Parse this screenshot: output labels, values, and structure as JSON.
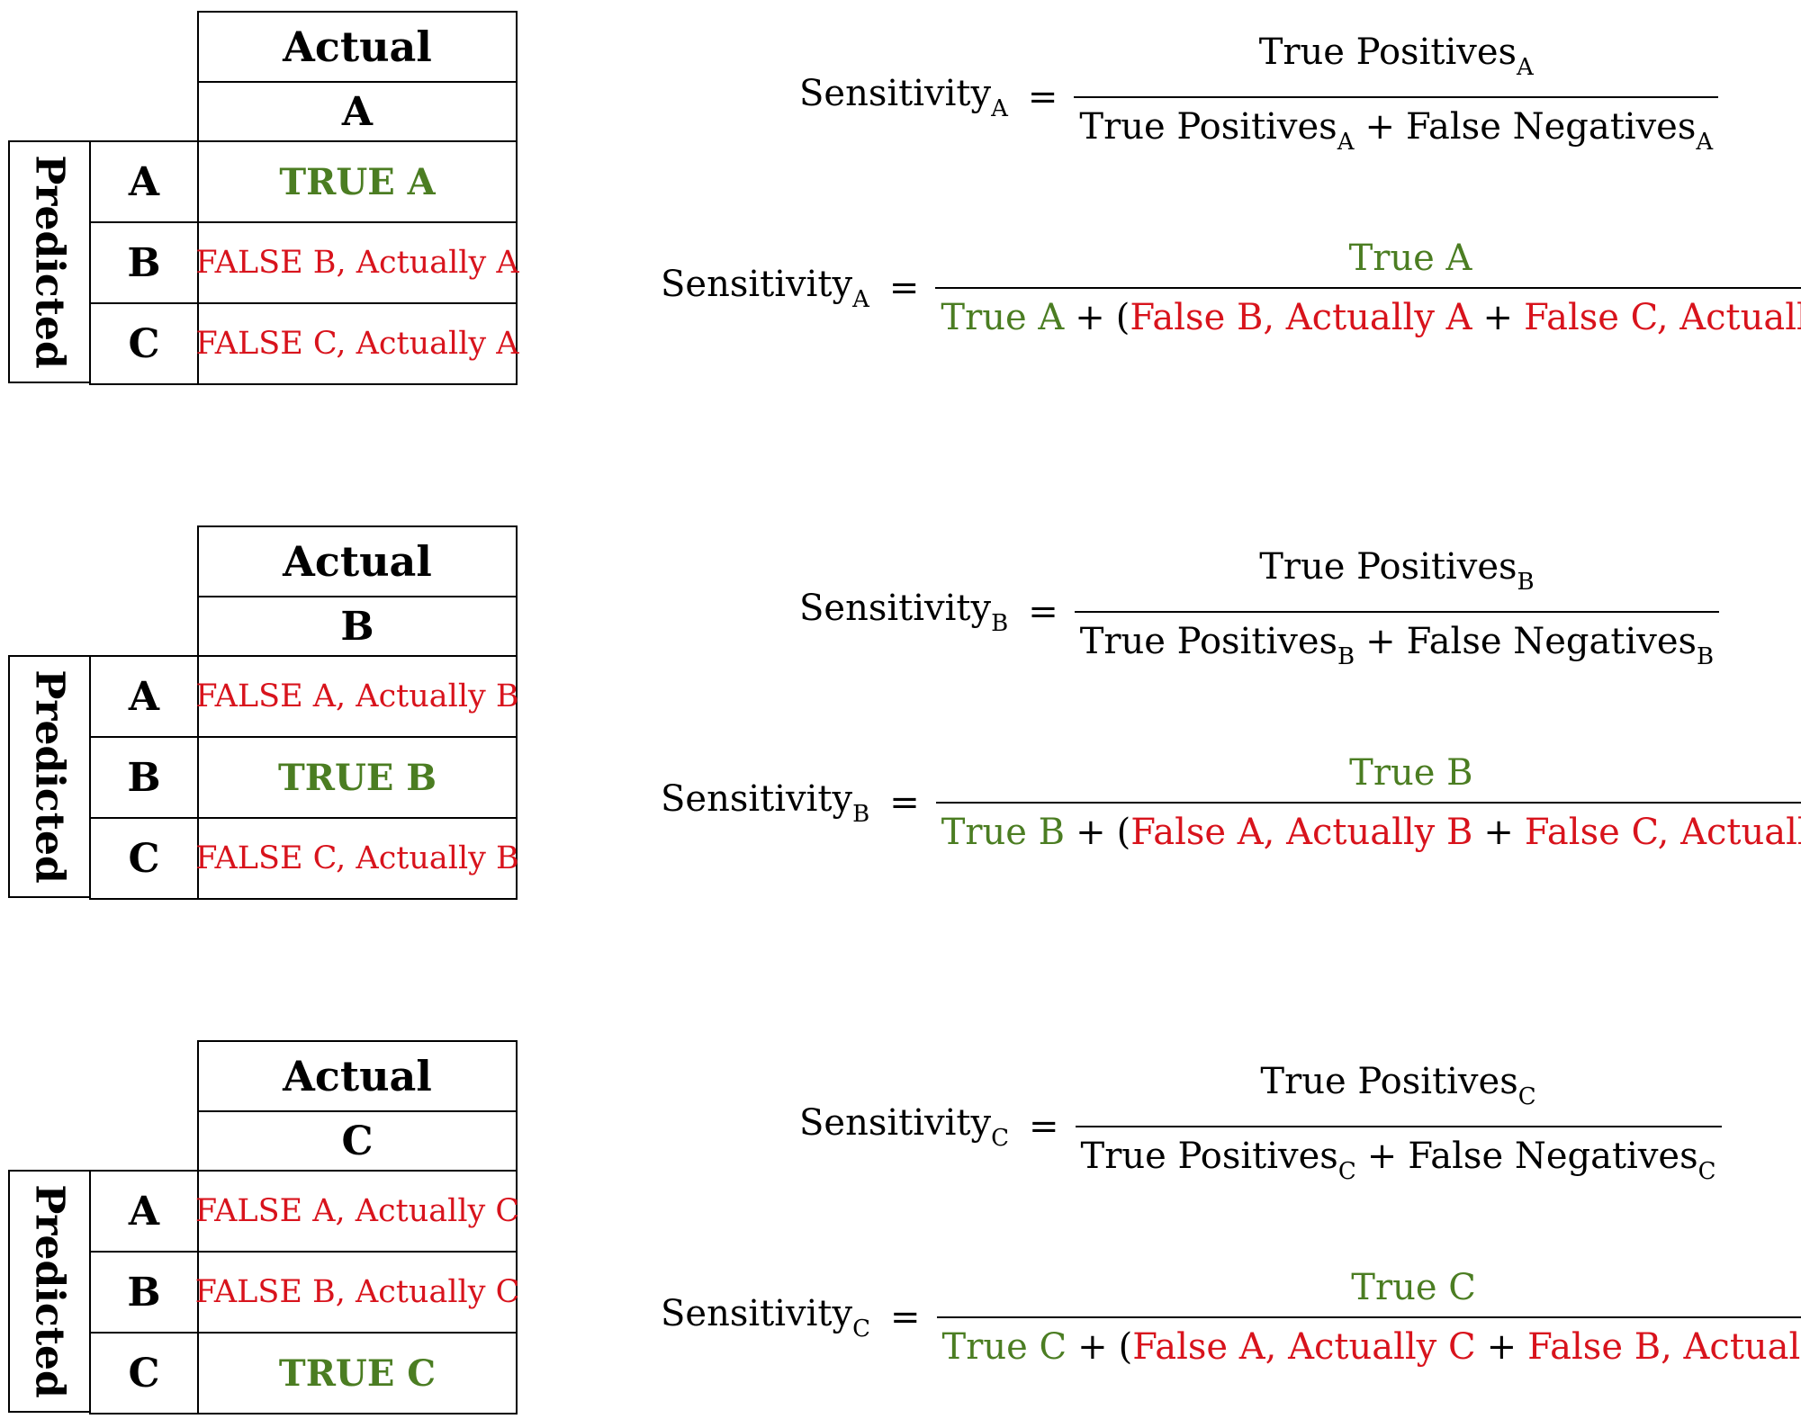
{
  "blocks": [
    {
      "table": {
        "actual_header": "Actual",
        "actual_class": "A",
        "predicted_label": "Predicted",
        "rows": [
          {
            "label": "A",
            "cell": "TRUE A"
          },
          {
            "label": "B",
            "cell": "FALSE B, Actually A"
          },
          {
            "label": "C",
            "cell": "FALSE C, Actually A"
          }
        ]
      },
      "formula1": {
        "lhs": "Sensitivity",
        "lhs_sub": "A",
        "eq": "=",
        "num": "True Positives",
        "num_sub": "A",
        "den_a": "True Positives",
        "den_a_sub": "A",
        "plus": "+",
        "den_b": "False Negatives",
        "den_b_sub": "A"
      },
      "formula2": {
        "lhs": "Sensitivity",
        "lhs_sub": "A",
        "eq": "=",
        "num": "True A",
        "den_true": "True A",
        "plus": "+",
        "open": "(",
        "den_f1": "False B, Actually A",
        "plus2": "+",
        "den_f2": "False C, Actually A",
        "close": ")"
      }
    },
    {
      "table": {
        "actual_header": "Actual",
        "actual_class": "B",
        "predicted_label": "Predicted",
        "rows": [
          {
            "label": "A",
            "cell": "FALSE A, Actually B"
          },
          {
            "label": "B",
            "cell": "TRUE B"
          },
          {
            "label": "C",
            "cell": "FALSE C, Actually B"
          }
        ]
      },
      "formula1": {
        "lhs": "Sensitivity",
        "lhs_sub": "B",
        "eq": "=",
        "num": "True Positives",
        "num_sub": "B",
        "den_a": "True Positives",
        "den_a_sub": "B",
        "plus": "+",
        "den_b": "False Negatives",
        "den_b_sub": "B"
      },
      "formula2": {
        "lhs": "Sensitivity",
        "lhs_sub": "B",
        "eq": "=",
        "num": "True B",
        "den_true": "True B",
        "plus": "+",
        "open": "(",
        "den_f1": "False A, Actually B",
        "plus2": "+",
        "den_f2": "False C, Actually B",
        "close": ")"
      }
    },
    {
      "table": {
        "actual_header": "Actual",
        "actual_class": "C",
        "predicted_label": "Predicted",
        "rows": [
          {
            "label": "A",
            "cell": "FALSE A, Actually C"
          },
          {
            "label": "B",
            "cell": "FALSE B, Actually C"
          },
          {
            "label": "C",
            "cell": "TRUE C"
          }
        ]
      },
      "formula1": {
        "lhs": "Sensitivity",
        "lhs_sub": "C",
        "eq": "=",
        "num": "True Positives",
        "num_sub": "C",
        "den_a": "True Positives",
        "den_a_sub": "C",
        "plus": "+",
        "den_b": "False Negatives",
        "den_b_sub": "C"
      },
      "formula2": {
        "lhs": "Sensitivity",
        "lhs_sub": "C",
        "eq": "=",
        "num": "True C",
        "den_true": "True C",
        "plus": "+",
        "open": "(",
        "den_f1": "False A, Actually C",
        "plus2": "+",
        "den_f2": "False B, Actually C",
        "close": ")"
      }
    }
  ],
  "colors": {
    "true": "#4b7d22",
    "false": "#d8131c"
  }
}
